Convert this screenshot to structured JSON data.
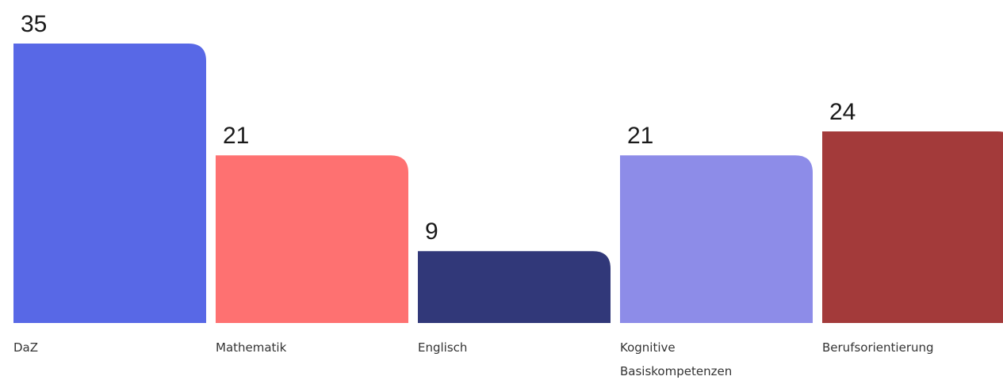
{
  "chart_data": {
    "type": "bar",
    "categories": [
      [
        "DaZ"
      ],
      [
        "Mathematik"
      ],
      [
        "Englisch"
      ],
      [
        "Kognitive",
        "Basiskompetenzen"
      ],
      [
        "Berufsorientierung"
      ]
    ],
    "values": [
      35,
      21,
      9,
      21,
      24
    ],
    "colors": [
      "#5868e6",
      "#fe7171",
      "#313879",
      "#8d8ce8",
      "#a33a3a"
    ],
    "title": "",
    "xlabel": "",
    "ylabel": "",
    "ylim": [
      0,
      35
    ],
    "grid": false,
    "legend": "none"
  }
}
